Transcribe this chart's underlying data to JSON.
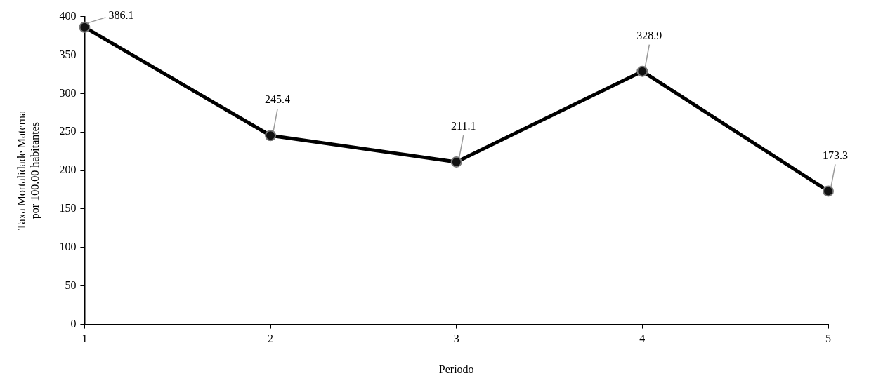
{
  "chart_data": {
    "type": "line",
    "xlabel": "Período",
    "ylabel": "Taxa Mortalidade Materna\npor 100.00 habitantes",
    "categories": [
      "1",
      "2",
      "3",
      "4",
      "5"
    ],
    "series": [
      {
        "color": "#000000",
        "values": [
          386.1,
          245.4,
          211.1,
          328.9,
          173.3
        ]
      }
    ],
    "ylim": [
      0,
      400
    ],
    "yticks": [
      0,
      50,
      100,
      150,
      200,
      250,
      300,
      350,
      400
    ],
    "grid": false,
    "legend": false,
    "marker": "circle",
    "line_style": "solid",
    "data_labels": true
  }
}
